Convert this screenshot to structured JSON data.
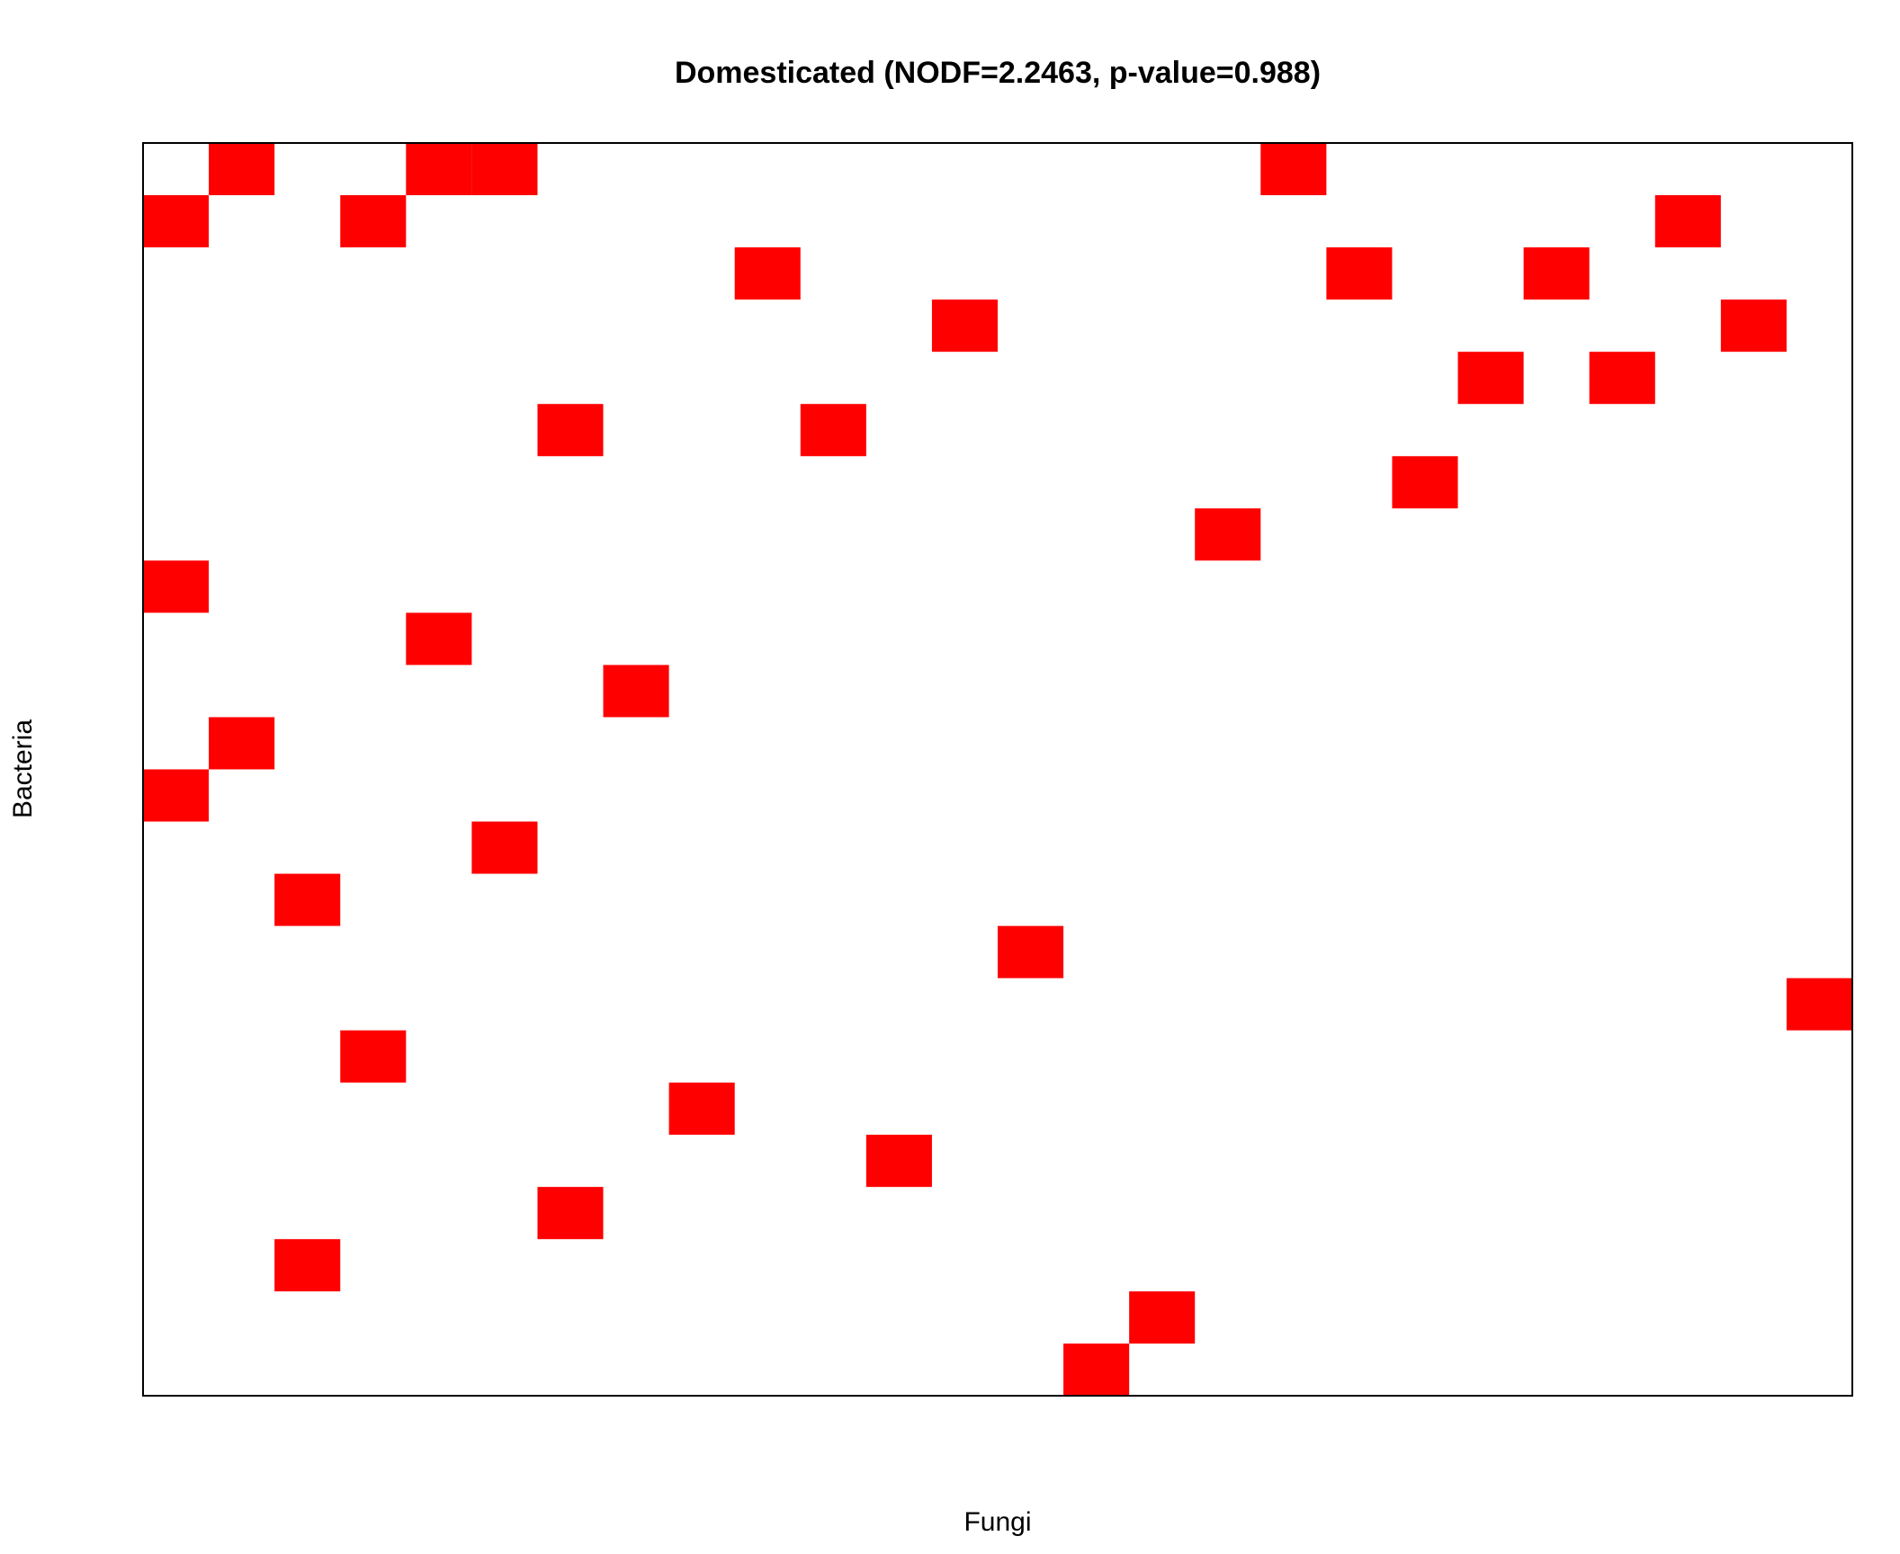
{
  "chart_data": {
    "type": "heatmap",
    "title": "Domesticated (NODF=2.2463, p-value=0.988)",
    "xlabel": "Fungi",
    "ylabel": "Bacteria",
    "n_columns": 26,
    "n_rows": 24,
    "fill_color": "#ff0000",
    "background_color": "#ffffff",
    "grid": false,
    "cells": [
      {
        "row": 1,
        "col": 2
      },
      {
        "row": 1,
        "col": 5
      },
      {
        "row": 1,
        "col": 6
      },
      {
        "row": 1,
        "col": 18
      },
      {
        "row": 2,
        "col": 1
      },
      {
        "row": 2,
        "col": 4
      },
      {
        "row": 2,
        "col": 24
      },
      {
        "row": 3,
        "col": 10
      },
      {
        "row": 3,
        "col": 19
      },
      {
        "row": 3,
        "col": 22
      },
      {
        "row": 4,
        "col": 13
      },
      {
        "row": 4,
        "col": 25
      },
      {
        "row": 5,
        "col": 21
      },
      {
        "row": 5,
        "col": 23
      },
      {
        "row": 6,
        "col": 7
      },
      {
        "row": 6,
        "col": 11
      },
      {
        "row": 7,
        "col": 20
      },
      {
        "row": 8,
        "col": 17
      },
      {
        "row": 9,
        "col": 1
      },
      {
        "row": 10,
        "col": 5
      },
      {
        "row": 11,
        "col": 8
      },
      {
        "row": 12,
        "col": 2
      },
      {
        "row": 13,
        "col": 1
      },
      {
        "row": 14,
        "col": 6
      },
      {
        "row": 15,
        "col": 3
      },
      {
        "row": 16,
        "col": 14
      },
      {
        "row": 17,
        "col": 26
      },
      {
        "row": 18,
        "col": 4
      },
      {
        "row": 19,
        "col": 9
      },
      {
        "row": 20,
        "col": 12
      },
      {
        "row": 21,
        "col": 7
      },
      {
        "row": 22,
        "col": 3
      },
      {
        "row": 23,
        "col": 16
      },
      {
        "row": 24,
        "col": 15
      }
    ]
  }
}
